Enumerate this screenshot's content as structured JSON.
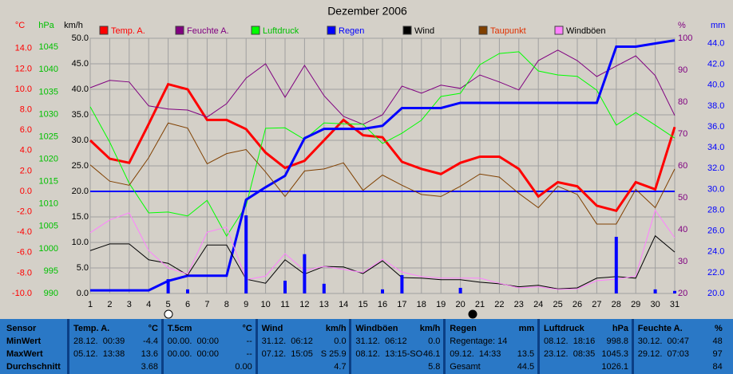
{
  "chart_data": {
    "type": "line",
    "title": "Dezember 2006",
    "x": [
      1,
      2,
      3,
      4,
      5,
      6,
      7,
      8,
      9,
      10,
      11,
      12,
      13,
      14,
      15,
      16,
      17,
      18,
      19,
      20,
      21,
      22,
      23,
      24,
      25,
      26,
      27,
      28,
      29,
      30,
      31
    ],
    "xlim": [
      1,
      31
    ],
    "grid": true,
    "ylim": [
      0,
      50
    ],
    "axes": {
      "temp": {
        "label": "°C",
        "color": "#ff0000",
        "lim": [
          -10,
          15
        ],
        "ticks": [
          {
            "value": -10,
            "label": "-10.0"
          },
          {
            "value": -8,
            "label": "-8.0"
          },
          {
            "value": -6,
            "label": "-6.0"
          },
          {
            "value": -4,
            "label": "-4.0"
          },
          {
            "value": -2,
            "label": "-2.0"
          },
          {
            "value": 0,
            "label": "0.0"
          },
          {
            "value": 2,
            "label": "2.0"
          },
          {
            "value": 4,
            "label": "4.0"
          },
          {
            "value": 6,
            "label": "6.0"
          },
          {
            "value": 8,
            "label": "8.0"
          },
          {
            "value": 10,
            "label": "10.0"
          },
          {
            "value": 12,
            "label": "12.0"
          },
          {
            "value": 14,
            "label": "14.0"
          }
        ]
      },
      "pressure": {
        "label": "hPa",
        "color": "#00c000",
        "lim": [
          990,
          1047
        ],
        "ticks": [
          990,
          995,
          1000,
          1005,
          1010,
          1015,
          1020,
          1025,
          1030,
          1035,
          1040,
          1045
        ]
      },
      "speed": {
        "label": "km/h",
        "color": "#000000",
        "lim": [
          0,
          50
        ],
        "ticks": [
          {
            "value": 0,
            "label": "0.0"
          },
          {
            "value": 5,
            "label": "5.0"
          },
          {
            "value": 10,
            "label": "10.0"
          },
          {
            "value": 15,
            "label": "15.0"
          },
          {
            "value": 20,
            "label": "20.0"
          },
          {
            "value": 25,
            "label": "25.0"
          },
          {
            "value": 30,
            "label": "30.0"
          },
          {
            "value": 35,
            "label": "35.0"
          },
          {
            "value": 40,
            "label": "40.0"
          },
          {
            "value": 45,
            "label": "45.0"
          },
          {
            "value": 50,
            "label": "50.0"
          }
        ]
      },
      "humidity": {
        "label": "%",
        "color": "#800080",
        "lim": [
          20,
          100
        ],
        "ticks": [
          20,
          30,
          40,
          50,
          60,
          70,
          80,
          90,
          100
        ]
      },
      "rain": {
        "label": "mm",
        "color": "#0000ff",
        "lim": [
          20,
          44.5
        ],
        "ticks": [
          {
            "value": 20,
            "label": "20.0"
          },
          {
            "value": 22,
            "label": "22.0"
          },
          {
            "value": 24,
            "label": "24.0"
          },
          {
            "value": 26,
            "label": "26.0"
          },
          {
            "value": 28,
            "label": "28.0"
          },
          {
            "value": 30,
            "label": "30.0"
          },
          {
            "value": 32,
            "label": "32.0"
          },
          {
            "value": 34,
            "label": "34.0"
          },
          {
            "value": 36,
            "label": "36.0"
          },
          {
            "value": 38,
            "label": "38.0"
          },
          {
            "value": 40,
            "label": "40.0"
          },
          {
            "value": 42,
            "label": "42.0"
          },
          {
            "value": 44,
            "label": "44.0"
          }
        ]
      }
    },
    "series": [
      {
        "name": "Temp. A.",
        "color": "#ff0000",
        "label_color": "#ff0000",
        "width": 3,
        "axis": "temp",
        "values": [
          5.0,
          3.2,
          2.8,
          6.6,
          10.5,
          10.0,
          7.0,
          7.0,
          6.1,
          3.8,
          2.3,
          3.0,
          5.0,
          7.0,
          5.5,
          5.3,
          2.9,
          2.2,
          1.7,
          2.8,
          3.4,
          3.4,
          2.2,
          -0.5,
          0.9,
          0.5,
          -1.4,
          -1.9,
          0.9,
          0.2,
          6.3
        ]
      },
      {
        "name": "Feuchte A.",
        "color": "#800080",
        "label_color": "#800080",
        "width": 1,
        "axis": "humidity",
        "values": [
          84.5,
          86.8,
          86.3,
          78.8,
          77.8,
          77.5,
          75.3,
          79.5,
          87.5,
          92,
          81.5,
          91.5,
          82,
          75.5,
          73,
          76,
          85,
          82.8,
          85.3,
          84.3,
          88.5,
          86.3,
          83.8,
          93,
          96.3,
          93,
          88,
          91.3,
          94.5,
          88.3,
          75.8
        ]
      },
      {
        "name": "Luftdruck",
        "color": "#00ff00",
        "label_color": "#00c000",
        "width": 1,
        "axis": "pressure",
        "values": [
          1031.7,
          1023.8,
          1014.6,
          1008.0,
          1008.2,
          1007.3,
          1010.8,
          1002.8,
          1009.6,
          1026.9,
          1027.0,
          1024.4,
          1028.1,
          1027.9,
          1027.8,
          1023.5,
          1025.8,
          1028.7,
          1034.0,
          1034.7,
          1041.1,
          1043.6,
          1044.0,
          1039.7,
          1038.8,
          1038.5,
          1035.4,
          1027.6,
          1030.4,
          1027.6,
          1024.7
        ]
      },
      {
        "name": "Regen",
        "color": "#0000ff",
        "label_color": "#0000ff",
        "width": 3,
        "axis": "rain",
        "values": [
          20.3,
          20.3,
          20.3,
          20.3,
          21.2,
          21.7,
          21.7,
          21.7,
          29.0,
          30.2,
          31.3,
          34.9,
          35.8,
          35.8,
          35.8,
          36.1,
          37.8,
          37.8,
          37.8,
          38.3,
          38.3,
          38.3,
          38.3,
          38.3,
          38.3,
          38.3,
          38.3,
          43.7,
          43.7,
          44.0,
          44.3
        ]
      },
      {
        "name": "Wind",
        "color": "#000000",
        "label_color": "#000000",
        "width": 1,
        "axis": "speed",
        "values": [
          8.4,
          9.7,
          9.7,
          6.6,
          5.9,
          3.6,
          9.5,
          9.5,
          2.8,
          2.0,
          6.6,
          3.8,
          5.3,
          5.2,
          3.9,
          6.4,
          3.1,
          3.0,
          2.7,
          2.7,
          2.2,
          1.9,
          1.3,
          1.6,
          0.9,
          1.1,
          3.0,
          3.3,
          3.0,
          11.3,
          8.1
        ]
      },
      {
        "name": "Taupunkt",
        "color": "#804000",
        "label_color": "#e03000",
        "width": 1,
        "axis": "temp",
        "values": [
          2.6,
          1.0,
          0.6,
          3.3,
          6.7,
          6.2,
          2.7,
          3.7,
          4.1,
          1.9,
          -0.5,
          2.0,
          2.2,
          2.8,
          0.1,
          1.6,
          0.6,
          -0.3,
          -0.5,
          0.5,
          1.7,
          1.4,
          -0.2,
          -1.6,
          0.5,
          -0.3,
          -3.2,
          -3.2,
          0.2,
          -1.6,
          2.2
        ]
      },
      {
        "name": "Windböen",
        "color": "#ff80ff",
        "label_color": "#000000",
        "width": 1,
        "axis": "speed",
        "values": [
          11.9,
          14.4,
          15.8,
          8.4,
          5.0,
          3.8,
          12.0,
          13.0,
          2.7,
          3.4,
          7.8,
          4.5,
          5.3,
          4.7,
          4.1,
          6.7,
          4.2,
          3.3,
          3.0,
          3.0,
          3.0,
          2.0,
          1.1,
          1.3,
          0.8,
          0.9,
          2.5,
          2.8,
          3.4,
          16.3,
          10.9
        ]
      },
      {
        "type": "bar",
        "color": "#0000ff",
        "axis": "speed",
        "values": [
          null,
          null,
          null,
          null,
          2.8,
          0.8,
          null,
          null,
          15.3,
          null,
          2.5,
          7.7,
          1.9,
          null,
          null,
          0.8,
          3.6,
          null,
          null,
          1.1,
          null,
          null,
          null,
          null,
          null,
          null,
          null,
          11.1,
          null,
          0.8,
          0.5
        ]
      }
    ]
  },
  "table": {
    "sensor": {
      "title": "Sensor",
      "rows": [
        "MinWert",
        "MaxWert",
        "Durchschnitt"
      ]
    },
    "panels": [
      {
        "title": "Temp. A.",
        "unit": "°C",
        "rows": [
          {
            "label": "28.12.  00:39",
            "value": "-4.4"
          },
          {
            "label": "05.12.  13:38",
            "value": "13.6"
          },
          {
            "value": "3.68"
          }
        ]
      },
      {
        "title": "T.5cm",
        "unit": "°C",
        "rows": [
          {
            "label": "00.00.  00:00",
            "value": "--"
          },
          {
            "label": "00.00.  00:00",
            "value": "--"
          },
          {
            "value": "0.00"
          }
        ]
      },
      {
        "title": "Wind",
        "unit": "km/h",
        "rows": [
          {
            "label": "31.12.  06:12",
            "value": "0.0"
          },
          {
            "label": "07.12.  15:05",
            "value": "S 25.9"
          },
          {
            "value": "4.7"
          }
        ]
      },
      {
        "title": "Windböen",
        "unit": "km/h",
        "rows": [
          {
            "label": "31.12.  06:12",
            "value": "0.0"
          },
          {
            "label": "08.12.  13:15-SO",
            "value": "46.1"
          },
          {
            "value": "5.8"
          }
        ]
      },
      {
        "title": "Regen",
        "unit": "mm",
        "rows": [
          {
            "label": "Regentage: 14"
          },
          {
            "label": "09.12.  14:33",
            "value": "13.5"
          },
          {
            "label": "Gesamt",
            "value": "44.5"
          }
        ]
      },
      {
        "title": "Luftdruck",
        "unit": "hPa",
        "rows": [
          {
            "label": "08.12.  18:16",
            "value": "998.8"
          },
          {
            "label": "23.12.  08:35",
            "value": "1045.3"
          },
          {
            "value": "1026.1"
          }
        ]
      },
      {
        "title": "Feuchte A.",
        "unit": "%",
        "rows": [
          {
            "label": "30.12.  00:47",
            "value": "48"
          },
          {
            "label": "29.12.  07:03",
            "value": "97"
          },
          {
            "value": "84"
          }
        ]
      }
    ]
  }
}
